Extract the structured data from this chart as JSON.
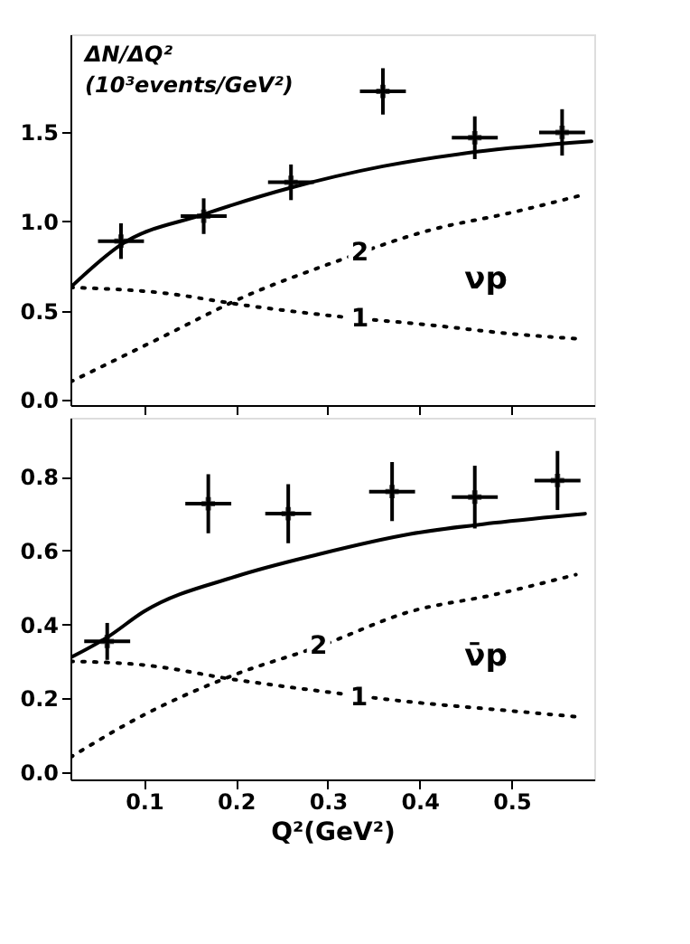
{
  "chart_data": [
    {
      "type": "line",
      "tick_labels": "y",
      "grid": false,
      "xlim": [
        0.02,
        0.59
      ],
      "ylim": [
        -0.03,
        2.05
      ],
      "xticks": [
        {
          "value": 0.1,
          "label": null
        },
        {
          "value": 0.2,
          "label": null
        },
        {
          "value": 0.3,
          "label": null
        },
        {
          "value": 0.4,
          "label": null
        },
        {
          "value": 0.5,
          "label": null
        }
      ],
      "yticks": [
        {
          "value": 0,
          "label": "0.0"
        },
        {
          "value": 0.5,
          "label": "0.5"
        },
        {
          "value": 1,
          "label": "1.0"
        },
        {
          "value": 1.5,
          "label": "1.5"
        }
      ],
      "annotations": [
        "ΔN/ΔQ²",
        "(10³events/GeV²)",
        {
          "text": "2",
          "x": 0.335,
          "y": 0.82
        },
        {
          "text": "1",
          "x": 0.335,
          "y": 0.45
        },
        "νp"
      ],
      "series": [
        {
          "type": "scatter",
          "marker": "cross",
          "color": "#000000",
          "x": [
            0.075,
            0.165,
            0.26,
            0.36,
            0.46,
            0.555
          ],
          "values": [
            0.89,
            1.03,
            1.22,
            1.73,
            1.47,
            1.5
          ],
          "errors": [
            0.1,
            0.1,
            0.1,
            0.13,
            0.12,
            0.13
          ],
          "xerrors": [
            0.025,
            0.025,
            0.025,
            0.025,
            0.025,
            0.025
          ]
        },
        {
          "line_style": "solid",
          "color": "#000000",
          "x": [
            0.02,
            0.075,
            0.165,
            0.26,
            0.36,
            0.46,
            0.587
          ],
          "values": [
            0.63,
            0.87,
            1.04,
            1.19,
            1.31,
            1.39,
            1.45
          ]
        },
        {
          "line_style": "dotted",
          "color": "#000000",
          "x": [
            0.02,
            0.119,
            0.21,
            0.306,
            0.41,
            0.5,
            0.578
          ],
          "values": [
            0.1,
            0.35,
            0.58,
            0.77,
            0.95,
            1.05,
            1.15
          ]
        },
        {
          "line_style": "dotted",
          "color": "#000000",
          "x": [
            0.02,
            0.119,
            0.21,
            0.306,
            0.41,
            0.5,
            0.578
          ],
          "values": [
            0.63,
            0.6,
            0.53,
            0.47,
            0.42,
            0.37,
            0.34
          ]
        }
      ]
    },
    {
      "type": "line",
      "grid": false,
      "xlabel": "Q²(GeV²)",
      "xlim": [
        0.02,
        0.59
      ],
      "ylim": [
        -0.02,
        0.96
      ],
      "xticks": [
        {
          "value": 0.1,
          "label": "0.1"
        },
        {
          "value": 0.2,
          "label": "0.2"
        },
        {
          "value": 0.3,
          "label": "0.3"
        },
        {
          "value": 0.4,
          "label": "0.4"
        },
        {
          "value": 0.5,
          "label": "0.5"
        }
      ],
      "yticks": [
        {
          "value": 0,
          "label": "0.0"
        },
        {
          "value": 0.2,
          "label": "0.2"
        },
        {
          "value": 0.4,
          "label": "0.4"
        },
        {
          "value": 0.6,
          "label": "0.6"
        },
        {
          "value": 0.8,
          "label": "0.8"
        }
      ],
      "annotations": [
        {
          "text": "2",
          "x": 0.29,
          "y": 0.34
        },
        {
          "text": "1",
          "x": 0.334,
          "y": 0.2
        },
        "ν̄p"
      ],
      "series": [
        {
          "type": "scatter",
          "marker": "cross",
          "color": "#000000",
          "x": [
            0.06,
            0.17,
            0.257,
            0.37,
            0.46,
            0.55
          ],
          "values": [
            0.354,
            0.727,
            0.7,
            0.76,
            0.745,
            0.79
          ],
          "errors": [
            0.05,
            0.08,
            0.08,
            0.08,
            0.085,
            0.08
          ],
          "xerrors": [
            0.025,
            0.025,
            0.025,
            0.025,
            0.025,
            0.025
          ]
        },
        {
          "line_style": "solid",
          "color": "#000000",
          "x": [
            0.02,
            0.06,
            0.1,
            0.2,
            0.29,
            0.39,
            0.48,
            0.58
          ],
          "values": [
            0.31,
            0.365,
            0.435,
            0.53,
            0.59,
            0.645,
            0.675,
            0.7
          ]
        },
        {
          "line_style": "dotted",
          "color": "#000000",
          "x": [
            0.02,
            0.1,
            0.2,
            0.29,
            0.39,
            0.48,
            0.57
          ],
          "values": [
            0.04,
            0.155,
            0.265,
            0.34,
            0.435,
            0.48,
            0.535
          ]
        },
        {
          "line_style": "dotted",
          "color": "#000000",
          "x": [
            0.02,
            0.1,
            0.2,
            0.29,
            0.39,
            0.48,
            0.57
          ],
          "values": [
            0.3,
            0.29,
            0.25,
            0.22,
            0.19,
            0.17,
            0.15
          ]
        }
      ]
    }
  ]
}
